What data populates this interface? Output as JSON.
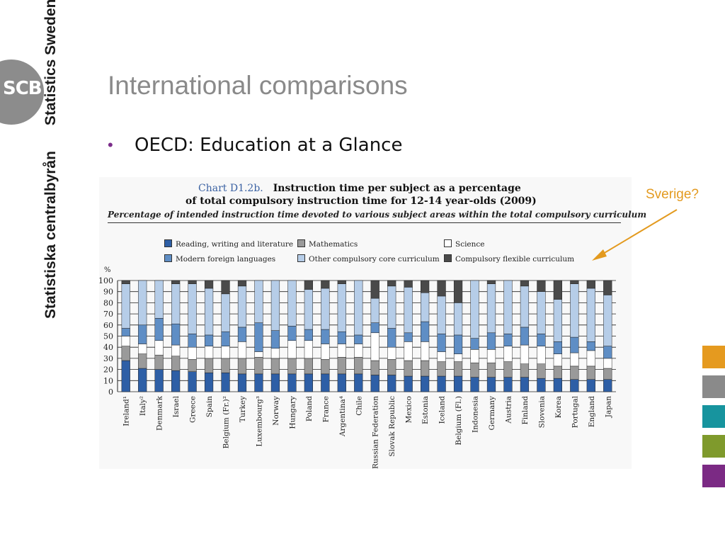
{
  "branding": {
    "logo_text": "SCB",
    "side_text_1": "Statistiska centralbyrån",
    "side_text_2": "Statistics Sweden"
  },
  "slide": {
    "title": "International comparisons",
    "bullet": "OECD: Education at a Glance",
    "callout": "Sverige?"
  },
  "accent_squares": [
    "#e59a1f",
    "#8a8a8a",
    "#17949e",
    "#7f9a2c",
    "#7b2a84"
  ],
  "colors": {
    "Reading, writing and literature": "#2e5fa6",
    "Mathematics": "#9a9a9a",
    "Science": "#ffffff",
    "Modern foreign languages": "#5f8ec5",
    "Other compulsory core curriculum": "#b6cde8",
    "Compulsory flexible curriculum": "#4a4a4a"
  },
  "chart_data": {
    "type": "bar",
    "stacked": true,
    "chart_label": "Chart D1.2b.",
    "title_line1": "Instruction time per subject as a percentage",
    "title_line2": "of total compulsory instruction time for 12-14 year-olds (2009)",
    "subtitle": "Percentage of intended instruction time devoted to various subject areas within the total compulsory curriculum",
    "ylabel": "%",
    "ylim": [
      0,
      100
    ],
    "yticks": [
      0,
      10,
      20,
      30,
      40,
      50,
      60,
      70,
      80,
      90,
      100
    ],
    "grid": true,
    "legend_position": "top",
    "categories": [
      "Ireland¹",
      "Italy²",
      "Denmark",
      "Israel",
      "Greece",
      "Spain",
      "Belgium (Fr.)²",
      "Turkey",
      "Luxembourg³",
      "Norway",
      "Hungary",
      "Poland",
      "France",
      "Argentina⁴",
      "Chile",
      "Russian Federation",
      "Slovak Republic",
      "Mexico",
      "Estonia",
      "Iceland",
      "Belgium (Fl.)",
      "Indonesia",
      "Germany",
      "Austria",
      "Finland",
      "Slovenia",
      "Korea",
      "Portugal",
      "England",
      "Japan"
    ],
    "series": [
      {
        "name": "Reading, writing and literature",
        "values": [
          28,
          21,
          20,
          19,
          18,
          17,
          17,
          16,
          16,
          16,
          16,
          16,
          16,
          16,
          16,
          15,
          15,
          14,
          14,
          14,
          14,
          13,
          13,
          13,
          13,
          12,
          12,
          11,
          11,
          11
        ]
      },
      {
        "name": "Mathematics",
        "values": [
          13,
          13,
          13,
          13,
          11,
          13,
          13,
          14,
          15,
          14,
          14,
          14,
          13,
          15,
          15,
          13,
          14,
          14,
          14,
          13,
          13,
          13,
          13,
          14,
          12,
          13,
          11,
          12,
          12,
          10
        ]
      },
      {
        "name": "Science",
        "values": [
          9,
          9,
          13,
          10,
          11,
          11,
          11,
          15,
          5,
          9,
          16,
          16,
          14,
          12,
          12,
          25,
          11,
          17,
          17,
          9,
          7,
          12,
          12,
          14,
          17,
          16,
          11,
          12,
          14,
          9
        ]
      },
      {
        "name": "Modern foreign languages",
        "values": [
          7,
          17,
          20,
          19,
          12,
          10,
          13,
          13,
          26,
          16,
          13,
          10,
          13,
          11,
          8,
          9,
          17,
          8,
          18,
          16,
          17,
          10,
          15,
          11,
          16,
          11,
          11,
          14,
          8,
          11
        ]
      },
      {
        "name": "Other compulsory core curriculum",
        "values": [
          40,
          40,
          34,
          36,
          45,
          42,
          34,
          37,
          38,
          45,
          41,
          36,
          37,
          43,
          49,
          22,
          38,
          41,
          26,
          34,
          29,
          52,
          44,
          48,
          37,
          38,
          38,
          48,
          48,
          46
        ]
      },
      {
        "name": "Compulsory flexible curriculum",
        "values": [
          3,
          0,
          0,
          3,
          3,
          7,
          12,
          5,
          0,
          0,
          0,
          8,
          7,
          3,
          0,
          16,
          5,
          6,
          11,
          14,
          20,
          0,
          3,
          0,
          5,
          10,
          17,
          3,
          7,
          13
        ]
      }
    ],
    "legend": [
      "Reading, writing and literature",
      "Mathematics",
      "Science",
      "Modern foreign languages",
      "Other compulsory core curriculum",
      "Compulsory flexible curriculum"
    ]
  }
}
